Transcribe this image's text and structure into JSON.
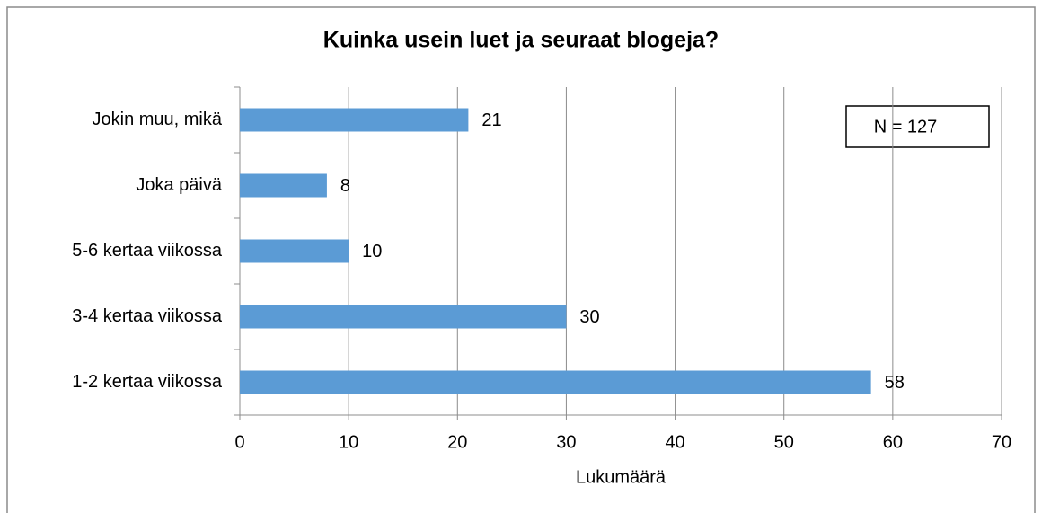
{
  "chart_data": {
    "type": "bar",
    "orientation": "horizontal",
    "title": "Kuinka usein luet ja seuraat blogeja?",
    "categories": [
      "Jokin muu, mikä",
      "Joka päivä",
      "5-6 kertaa viikossa",
      "3-4 kertaa viikossa",
      "1-2 kertaa viikossa"
    ],
    "values": [
      21,
      8,
      10,
      30,
      58
    ],
    "color": "#5b9bd5",
    "xlim": [
      0,
      70
    ],
    "xticks": [
      0,
      10,
      20,
      30,
      40,
      50,
      60,
      70
    ],
    "x_label": "Lukumäärä",
    "annotation": "N = 127",
    "grid": true
  }
}
